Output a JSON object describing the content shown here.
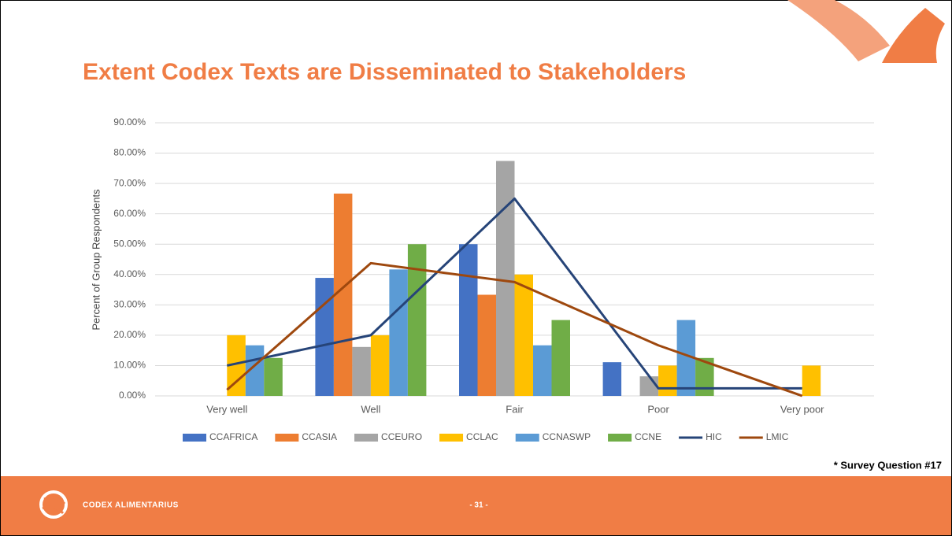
{
  "chart_data": {
    "type": "bar",
    "title": "Extent Codex Texts are Disseminated to Stakeholders",
    "y_label": "Percent of Group Respondents",
    "categories": [
      "Very well",
      "Well",
      "Fair",
      "Poor",
      "Very poor"
    ],
    "series": [
      {
        "name": "CCAFRICA",
        "type": "bar",
        "color": "#4472c4",
        "values": [
          0,
          38.89,
          50,
          11.11,
          0
        ]
      },
      {
        "name": "CCASIA",
        "type": "bar",
        "color": "#ed7d31",
        "values": [
          0,
          66.67,
          33.33,
          0,
          0
        ]
      },
      {
        "name": "CCEURO",
        "type": "bar",
        "color": "#a5a5a5",
        "values": [
          0,
          16.13,
          77.42,
          6.45,
          0
        ]
      },
      {
        "name": "CCLAC",
        "type": "bar",
        "color": "#ffc000",
        "values": [
          20,
          20,
          40,
          10,
          10
        ]
      },
      {
        "name": "CCNASWP",
        "type": "bar",
        "color": "#5b9bd5",
        "values": [
          16.67,
          41.67,
          16.67,
          25,
          0
        ]
      },
      {
        "name": "CCNE",
        "type": "bar",
        "color": "#70ad47",
        "values": [
          12.5,
          50,
          25,
          12.5,
          0
        ]
      },
      {
        "name": "HIC",
        "type": "line",
        "color": "#264478",
        "values": [
          10,
          20,
          65,
          2.5,
          2.5
        ]
      },
      {
        "name": "LMIC",
        "type": "line",
        "color": "#9e480e",
        "values": [
          2,
          43.75,
          37.5,
          16.67,
          0
        ]
      }
    ],
    "ylim": [
      0,
      90
    ],
    "yticks": [
      {
        "value": 0,
        "label": "0.00%"
      },
      {
        "value": 10,
        "label": "10.00%"
      },
      {
        "value": 20,
        "label": "20.00%"
      },
      {
        "value": 30,
        "label": "30.00%"
      },
      {
        "value": 40,
        "label": "40.00%"
      },
      {
        "value": 50,
        "label": "50.00%"
      },
      {
        "value": 60,
        "label": "60.00%"
      },
      {
        "value": 70,
        "label": "70.00%"
      },
      {
        "value": 80,
        "label": "80.00%"
      },
      {
        "value": 90,
        "label": "90.00%"
      }
    ],
    "grid": true,
    "legend": "bottom"
  },
  "footer": {
    "note": "* Survey Question #17",
    "brand": "CODEX ALIMENTARIUS",
    "page": "- 31 -"
  }
}
